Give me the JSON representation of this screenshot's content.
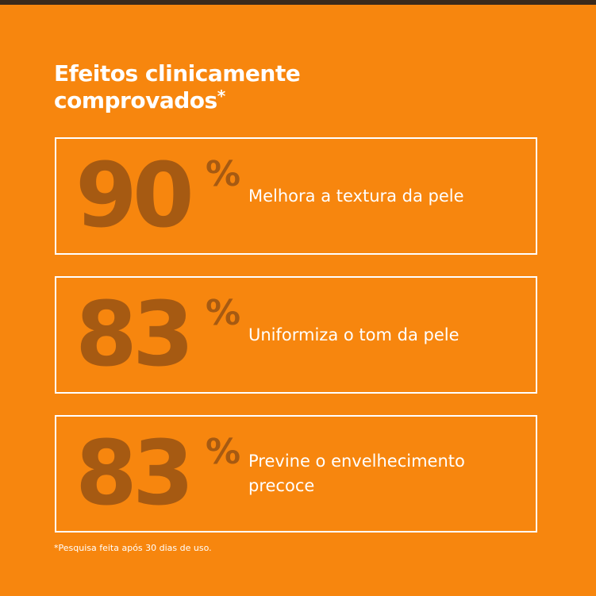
{
  "title": "Efeitos clinicamente comprovados",
  "title_mark": "*",
  "stats": [
    {
      "value": 90,
      "unit": "%",
      "label": "Melhora a textura da pele"
    },
    {
      "value": 83,
      "unit": "%",
      "label": "Uniformiza o tom da pele"
    },
    {
      "value": 83,
      "unit": "%",
      "label": "Previne o envelhecimento precoce"
    }
  ],
  "footnote": "*Pesquisa feita após 30 dias de uso."
}
